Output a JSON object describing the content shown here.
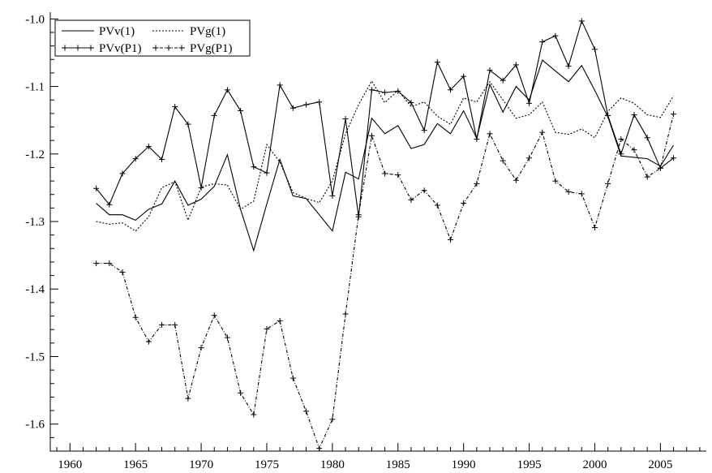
{
  "chart_data": {
    "type": "line",
    "title": "",
    "xlabel": "",
    "ylabel": "",
    "xlim": [
      1958.5,
      2008.5
    ],
    "ylim": [
      -1.64,
      -0.99
    ],
    "x_ticks": [
      1960,
      1965,
      1970,
      1975,
      1980,
      1985,
      1990,
      1995,
      2000,
      2005
    ],
    "x_tick_labels": [
      "1960",
      "1965",
      "1970",
      "1975",
      "1980",
      "1985",
      "1990",
      "1995",
      "2000",
      "2005"
    ],
    "y_ticks": [
      -1.6,
      -1.5,
      -1.4,
      -1.3,
      -1.2,
      -1.1,
      -1.0
    ],
    "y_tick_labels": [
      "-1.6",
      "-1.5",
      "-1.4",
      "-1.3",
      "-1.2",
      "-1.1",
      "-1.0"
    ],
    "grid": false,
    "legend_position": "top-left",
    "x": [
      1962,
      1963,
      1964,
      1965,
      1966,
      1967,
      1968,
      1969,
      1970,
      1971,
      1972,
      1973,
      1974,
      1975,
      1976,
      1977,
      1978,
      1979,
      1980,
      1981,
      1982,
      1983,
      1984,
      1985,
      1986,
      1987,
      1988,
      1989,
      1990,
      1991,
      1992,
      1993,
      1994,
      1995,
      1996,
      1997,
      1998,
      1999,
      2000,
      2001,
      2002,
      2003,
      2004,
      2005,
      2006
    ],
    "series": [
      {
        "name": "PVv(1)",
        "style": "solid",
        "markers": false,
        "values": [
          -1.273,
          -1.29,
          -1.29,
          -1.298,
          -1.282,
          -1.274,
          -1.24,
          -1.276,
          -1.267,
          -1.248,
          -1.201,
          -1.282,
          -1.343,
          -1.274,
          -1.208,
          -1.262,
          -1.266,
          -1.29,
          -1.314,
          -1.227,
          -1.237,
          -1.147,
          -1.17,
          -1.158,
          -1.192,
          -1.186,
          -1.155,
          -1.17,
          -1.136,
          -1.177,
          -1.097,
          -1.138,
          -1.1,
          -1.12,
          -1.061,
          -1.077,
          -1.093,
          -1.069,
          -1.106,
          -1.145,
          -1.203,
          -1.205,
          -1.207,
          -1.218,
          -1.187
        ]
      },
      {
        "name": "PVg(1)",
        "style": "dotted",
        "markers": false,
        "values": [
          -1.3,
          -1.304,
          -1.302,
          -1.314,
          -1.293,
          -1.25,
          -1.241,
          -1.298,
          -1.249,
          -1.244,
          -1.246,
          -1.282,
          -1.27,
          -1.186,
          -1.212,
          -1.257,
          -1.266,
          -1.272,
          -1.24,
          -1.17,
          -1.127,
          -1.092,
          -1.124,
          -1.106,
          -1.13,
          -1.123,
          -1.144,
          -1.156,
          -1.117,
          -1.123,
          -1.093,
          -1.12,
          -1.147,
          -1.142,
          -1.123,
          -1.168,
          -1.171,
          -1.163,
          -1.176,
          -1.137,
          -1.117,
          -1.125,
          -1.142,
          -1.146,
          -1.114
        ]
      },
      {
        "name": "PVv(P1)",
        "style": "solid",
        "markers": true,
        "values": [
          -1.251,
          -1.275,
          -1.229,
          -1.207,
          -1.189,
          -1.208,
          -1.13,
          -1.156,
          -1.25,
          -1.143,
          -1.105,
          -1.136,
          -1.219,
          -1.228,
          -1.098,
          -1.132,
          -1.127,
          -1.123,
          -1.262,
          -1.148,
          -1.293,
          -1.105,
          -1.109,
          -1.107,
          -1.124,
          -1.165,
          -1.064,
          -1.105,
          -1.085,
          -1.178,
          -1.076,
          -1.091,
          -1.068,
          -1.125,
          -1.034,
          -1.025,
          -1.07,
          -1.003,
          -1.045,
          -1.143,
          -1.2,
          -1.142,
          -1.176,
          -1.221,
          -1.206
        ]
      },
      {
        "name": "PVg(P1)",
        "style": "dashed",
        "markers": true,
        "values": [
          -1.362,
          -1.362,
          -1.375,
          -1.442,
          -1.478,
          -1.453,
          -1.453,
          -1.562,
          -1.487,
          -1.439,
          -1.472,
          -1.554,
          -1.586,
          -1.459,
          -1.447,
          -1.532,
          -1.581,
          -1.636,
          -1.593,
          -1.437,
          -1.29,
          -1.173,
          -1.229,
          -1.231,
          -1.268,
          -1.254,
          -1.276,
          -1.327,
          -1.273,
          -1.244,
          -1.17,
          -1.21,
          -1.239,
          -1.206,
          -1.168,
          -1.24,
          -1.256,
          -1.259,
          -1.309,
          -1.244,
          -1.178,
          -1.194,
          -1.234,
          -1.221,
          -1.141
        ]
      }
    ]
  }
}
